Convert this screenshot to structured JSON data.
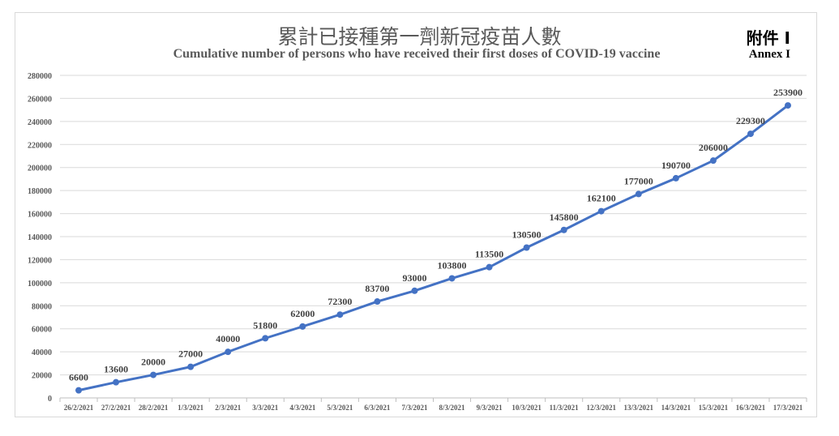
{
  "header": {
    "annex_zh": "附件 I",
    "annex_en": "Annex I"
  },
  "chart_data": {
    "type": "line",
    "title": "累計已接種第一劑新冠疫苗人數",
    "subtitle": "Cumulative number of persons who have received their first doses of COVID-19 vaccine",
    "xlabel": "",
    "ylabel": "",
    "categories": [
      "26/2/2021",
      "27/2/2021",
      "28/2/2021",
      "1/3/2021",
      "2/3/2021",
      "3/3/2021",
      "4/3/2021",
      "5/3/2021",
      "6/3/2021",
      "7/3/2021",
      "8/3/2021",
      "9/3/2021",
      "10/3/2021",
      "11/3/2021",
      "12/3/2021",
      "13/3/2021",
      "14/3/2021",
      "15/3/2021",
      "16/3/2021",
      "17/3/2021"
    ],
    "values": [
      6600,
      13600,
      20000,
      27000,
      40000,
      51800,
      62000,
      72300,
      83700,
      93000,
      103800,
      113500,
      130500,
      145800,
      162100,
      177000,
      190700,
      206000,
      229300,
      253900
    ],
    "ylim": [
      0,
      280000
    ],
    "yticks": [
      0,
      20000,
      40000,
      60000,
      80000,
      100000,
      120000,
      140000,
      160000,
      180000,
      200000,
      220000,
      240000,
      260000,
      280000
    ],
    "grid": true,
    "legend": "none",
    "data_labels": true,
    "line_color": "#4472c4"
  }
}
